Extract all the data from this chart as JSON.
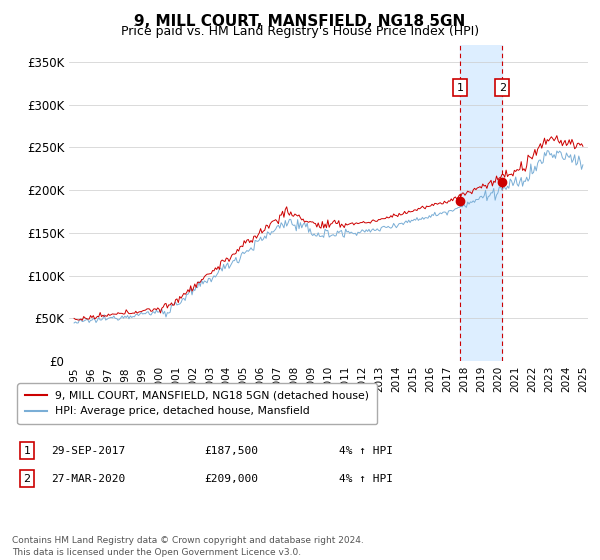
{
  "title": "9, MILL COURT, MANSFIELD, NG18 5GN",
  "subtitle": "Price paid vs. HM Land Registry's House Price Index (HPI)",
  "ylim": [
    0,
    370000
  ],
  "yticks": [
    0,
    50000,
    100000,
    150000,
    200000,
    250000,
    300000,
    350000
  ],
  "ytick_labels": [
    "£0",
    "£50K",
    "£100K",
    "£150K",
    "£200K",
    "£250K",
    "£300K",
    "£350K"
  ],
  "sale1_t": 22.75,
  "sale1_price": 187500,
  "sale1_label": "1",
  "sale1_date_str": "29-SEP-2017",
  "sale1_pct": "4% ↑ HPI",
  "sale2_t": 25.25,
  "sale2_price": 209000,
  "sale2_label": "2",
  "sale2_date_str": "27-MAR-2020",
  "sale2_pct": "4% ↑ HPI",
  "property_line_color": "#cc0000",
  "hpi_line_color": "#7aaed6",
  "shading_color": "#ddeeff",
  "highlight_box_color": "#cc0000",
  "legend_label1": "9, MILL COURT, MANSFIELD, NG18 5GN (detached house)",
  "legend_label2": "HPI: Average price, detached house, Mansfield",
  "footnote": "Contains HM Land Registry data © Crown copyright and database right 2024.\nThis data is licensed under the Open Government Licence v3.0.",
  "xlabel_years": [
    "1995",
    "1996",
    "1997",
    "1998",
    "1999",
    "2000",
    "2001",
    "2002",
    "2003",
    "2004",
    "2005",
    "2006",
    "2007",
    "2008",
    "2009",
    "2010",
    "2011",
    "2012",
    "2013",
    "2014",
    "2015",
    "2016",
    "2017",
    "2018",
    "2019",
    "2020",
    "2021",
    "2022",
    "2023",
    "2024",
    "2025"
  ]
}
